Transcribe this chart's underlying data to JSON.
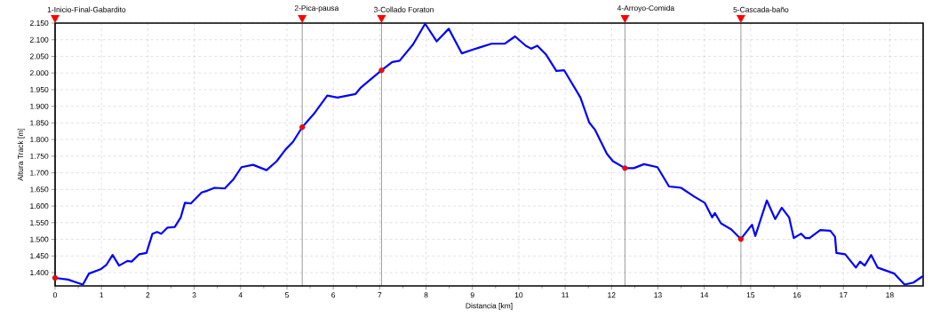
{
  "chart_data": {
    "type": "line",
    "xlabel": "Distancia [km]",
    "ylabel": "Altura Track [m]",
    "xlim": [
      0,
      18.72
    ],
    "ylim": [
      1360,
      2150
    ],
    "xticks": [
      0,
      1,
      2,
      3,
      4,
      5,
      6,
      7,
      8,
      9,
      10,
      11,
      12,
      13,
      14,
      15,
      16,
      17,
      18
    ],
    "yticks": [
      {
        "value": 1400,
        "label": "1.400"
      },
      {
        "value": 1450,
        "label": "1.450"
      },
      {
        "value": 1500,
        "label": "1.500"
      },
      {
        "value": 1550,
        "label": "1.550"
      },
      {
        "value": 1600,
        "label": "1.600"
      },
      {
        "value": 1650,
        "label": "1.650"
      },
      {
        "value": 1700,
        "label": "1.700"
      },
      {
        "value": 1750,
        "label": "1.750"
      },
      {
        "value": 1800,
        "label": "1.800"
      },
      {
        "value": 1850,
        "label": "1.850"
      },
      {
        "value": 1900,
        "label": "1.900"
      },
      {
        "value": 1950,
        "label": "1.950"
      },
      {
        "value": 2000,
        "label": "2.000"
      },
      {
        "value": 2050,
        "label": "2.050"
      },
      {
        "value": 2100,
        "label": "2.100"
      },
      {
        "value": 2150,
        "label": "2.150"
      }
    ],
    "grid": true,
    "series": [
      {
        "color": "#0000ff",
        "x": [
          0,
          0.28,
          0.47,
          0.6,
          0.73,
          0.98,
          1.11,
          1.24,
          1.38,
          1.56,
          1.65,
          1.81,
          1.97,
          2.1,
          2.2,
          2.29,
          2.42,
          2.58,
          2.71,
          2.8,
          2.93,
          3.16,
          3.28,
          3.44,
          3.66,
          3.85,
          4.02,
          4.27,
          4.56,
          4.78,
          4.97,
          5.13,
          5.33,
          5.58,
          5.87,
          6.09,
          6.48,
          6.6,
          7.04,
          7.27,
          7.43,
          7.72,
          7.98,
          8.23,
          8.49,
          8.77,
          9.0,
          9.16,
          9.41,
          9.7,
          9.92,
          10.15,
          10.27,
          10.4,
          10.59,
          10.81,
          10.98,
          11.33,
          11.52,
          11.65,
          11.9,
          12.03,
          12.29,
          12.48,
          12.7,
          12.99,
          13.24,
          13.5,
          13.79,
          14.01,
          14.17,
          14.23,
          14.36,
          14.58,
          14.79,
          15.03,
          15.1,
          15.35,
          15.53,
          15.67,
          15.83,
          15.93,
          16.09,
          16.18,
          16.27,
          16.5,
          16.72,
          16.82,
          16.85,
          17.04,
          17.27,
          17.36,
          17.46,
          17.6,
          17.74,
          18.1,
          18.32,
          18.51,
          18.7
        ],
        "values": [
          1384,
          1379,
          1370,
          1364,
          1397,
          1410,
          1424,
          1453,
          1421,
          1435,
          1433,
          1455,
          1459,
          1517,
          1522,
          1517,
          1535,
          1537,
          1566,
          1610,
          1608,
          1641,
          1646,
          1655,
          1653,
          1681,
          1717,
          1724,
          1708,
          1735,
          1770,
          1793,
          1837,
          1877,
          1932,
          1926,
          1937,
          1957,
          2008,
          2033,
          2037,
          2086,
          2148,
          2095,
          2133,
          2059,
          2070,
          2077,
          2088,
          2088,
          2110,
          2082,
          2073,
          2082,
          2055,
          2006,
          2008,
          1926,
          1851,
          1828,
          1757,
          1735,
          1714,
          1714,
          1726,
          1717,
          1659,
          1655,
          1628,
          1610,
          1566,
          1579,
          1548,
          1530,
          1501,
          1544,
          1510,
          1617,
          1561,
          1595,
          1566,
          1504,
          1517,
          1504,
          1504,
          1528,
          1526,
          1508,
          1459,
          1455,
          1415,
          1433,
          1421,
          1453,
          1415,
          1397,
          1364,
          1370,
          1388
        ]
      },
      {
        "type": "scatter",
        "color": "#ff0000",
        "marker": "circle",
        "x": [
          0,
          5.33,
          7.04,
          12.29,
          14.79
        ],
        "values": [
          1384,
          1837,
          2008,
          1714,
          1501
        ]
      }
    ],
    "ref_lines": [
      {
        "axis": "x",
        "value": 0,
        "label": "1-Inicio-Final-Gabardito",
        "color": "#000000"
      },
      {
        "axis": "x",
        "value": 5.33,
        "label": "2-Pica-pausa",
        "color": "#000000"
      },
      {
        "axis": "x",
        "value": 7.04,
        "label": "3-Collado Foraton",
        "color": "#000000"
      },
      {
        "axis": "x",
        "value": 12.29,
        "label": "4-Arroyo-Comida",
        "color": "#000000"
      },
      {
        "axis": "x",
        "value": 14.79,
        "label": "5-Cascada-baño",
        "color": "#000000"
      }
    ]
  }
}
